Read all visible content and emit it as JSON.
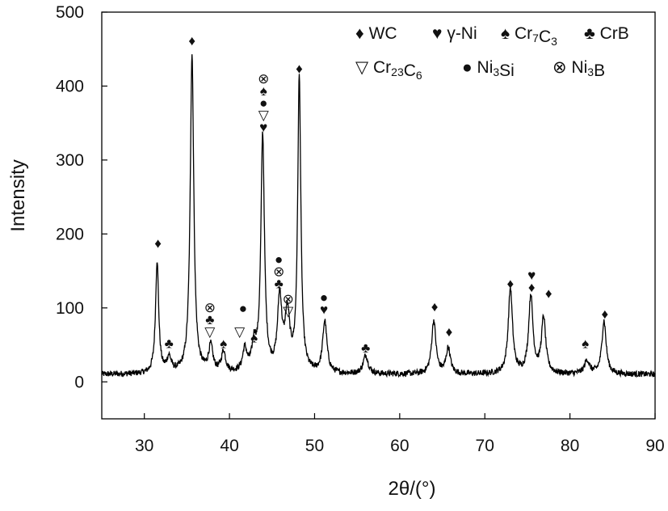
{
  "chart_data": {
    "type": "line",
    "title": "",
    "xlabel": "2θ/(°)",
    "ylabel": "Intensity",
    "xlim": [
      25,
      90
    ],
    "ylim": [
      -50,
      500
    ],
    "xticks": [
      30,
      40,
      50,
      60,
      70,
      80,
      90
    ],
    "yticks": [
      0,
      100,
      200,
      300,
      400,
      500
    ],
    "grid": false,
    "legend_position": "top-right",
    "legend": [
      {
        "symbol": "♦",
        "label": "WC"
      },
      {
        "symbol": "♥",
        "label": "γ-Ni"
      },
      {
        "symbol": "♠",
        "label": "Cr7C3"
      },
      {
        "symbol": "♣",
        "label": "CrB"
      },
      {
        "symbol": "▽",
        "label": "Cr23C6"
      },
      {
        "symbol": "●",
        "label": "Ni3Si"
      },
      {
        "symbol": "⊗",
        "label": "Ni3B"
      }
    ],
    "baseline": 10,
    "peaks": [
      {
        "x": 31.5,
        "y": 152,
        "w": 0.22
      },
      {
        "x": 32.9,
        "y": 20,
        "w": 0.3
      },
      {
        "x": 35.6,
        "y": 432,
        "w": 0.25
      },
      {
        "x": 37.8,
        "y": 35,
        "w": 0.3
      },
      {
        "x": 39.3,
        "y": 28,
        "w": 0.3
      },
      {
        "x": 41.8,
        "y": 30,
        "w": 0.3
      },
      {
        "x": 42.9,
        "y": 35,
        "w": 0.3
      },
      {
        "x": 43.9,
        "y": 320,
        "w": 0.25
      },
      {
        "x": 45.9,
        "y": 98,
        "w": 0.3
      },
      {
        "x": 46.8,
        "y": 75,
        "w": 0.35
      },
      {
        "x": 48.2,
        "y": 398,
        "w": 0.22
      },
      {
        "x": 51.2,
        "y": 70,
        "w": 0.3
      },
      {
        "x": 56.0,
        "y": 25,
        "w": 0.35
      },
      {
        "x": 64.0,
        "y": 72,
        "w": 0.3
      },
      {
        "x": 65.7,
        "y": 35,
        "w": 0.3
      },
      {
        "x": 73.0,
        "y": 115,
        "w": 0.3
      },
      {
        "x": 75.4,
        "y": 105,
        "w": 0.3
      },
      {
        "x": 76.9,
        "y": 75,
        "w": 0.3
      },
      {
        "x": 82.0,
        "y": 18,
        "w": 0.35
      },
      {
        "x": 84.0,
        "y": 72,
        "w": 0.3
      }
    ],
    "annotations": [
      {
        "x": 31.6,
        "y": 188,
        "symbols": [
          "♦"
        ]
      },
      {
        "x": 32.9,
        "y": 52,
        "symbols": [
          "♣"
        ]
      },
      {
        "x": 35.6,
        "y": 462,
        "symbols": [
          "♦"
        ]
      },
      {
        "x": 37.7,
        "y": 68,
        "symbols": [
          "▽",
          "♣",
          "⊗"
        ]
      },
      {
        "x": 39.3,
        "y": 52,
        "symbols": [
          "♠"
        ]
      },
      {
        "x": 41.2,
        "y": 68,
        "symbols": [
          "▽"
        ]
      },
      {
        "x": 41.6,
        "y": 100,
        "symbols": [
          "●"
        ]
      },
      {
        "x": 42.9,
        "y": 60,
        "symbols": [
          "♠"
        ]
      },
      {
        "x": 44.0,
        "y": 345,
        "symbols": [
          "♥",
          "▽",
          "●",
          "♠",
          "⊗"
        ]
      },
      {
        "x": 45.8,
        "y": 133,
        "symbols": [
          "♣",
          "⊗",
          "●"
        ]
      },
      {
        "x": 46.9,
        "y": 96,
        "symbols": [
          "▽",
          "⊗"
        ]
      },
      {
        "x": 48.2,
        "y": 424,
        "symbols": [
          "♦"
        ]
      },
      {
        "x": 51.1,
        "y": 98,
        "symbols": [
          "♥",
          "●"
        ]
      },
      {
        "x": 56.0,
        "y": 46,
        "symbols": [
          "♣"
        ]
      },
      {
        "x": 64.1,
        "y": 102,
        "symbols": [
          "♦"
        ]
      },
      {
        "x": 65.8,
        "y": 68,
        "symbols": [
          "♦"
        ]
      },
      {
        "x": 73.0,
        "y": 133,
        "symbols": [
          "♦"
        ]
      },
      {
        "x": 75.5,
        "y": 128,
        "symbols": [
          "♦",
          "♥"
        ]
      },
      {
        "x": 77.5,
        "y": 120,
        "symbols": [
          "♦"
        ]
      },
      {
        "x": 81.8,
        "y": 52,
        "symbols": [
          "♠"
        ]
      },
      {
        "x": 84.1,
        "y": 92,
        "symbols": [
          "♦"
        ]
      }
    ]
  }
}
